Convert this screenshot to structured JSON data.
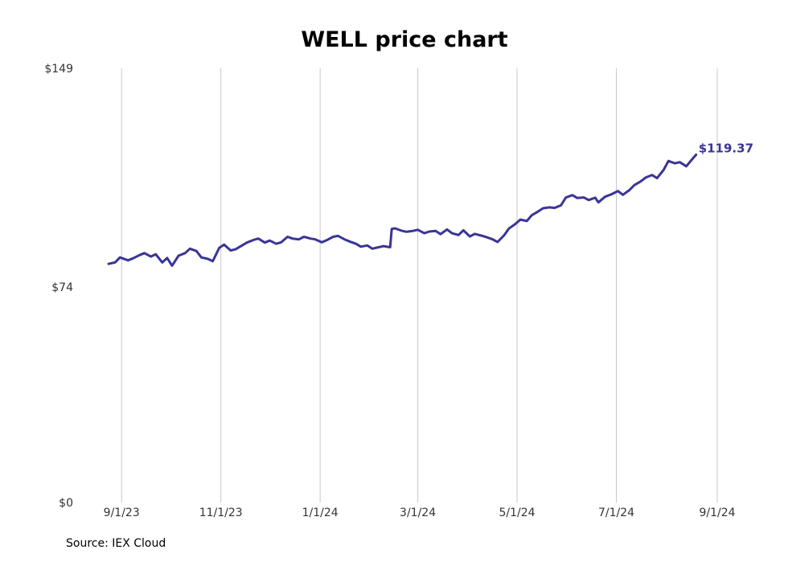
{
  "chart_data": {
    "type": "line",
    "title": "WELL price chart",
    "x_tick_labels": [
      "9/1/23",
      "11/1/23",
      "1/1/24",
      "3/1/24",
      "5/1/24",
      "7/1/24",
      "9/1/24"
    ],
    "x_tick_dates": [
      "2023-09-01",
      "2023-11-01",
      "2024-01-01",
      "2024-03-01",
      "2024-05-01",
      "2024-07-01",
      "2024-09-01"
    ],
    "y_tick_labels": [
      "$0",
      "$74",
      "$149"
    ],
    "y_tick_values": [
      0,
      74,
      149
    ],
    "ylim": [
      0,
      149
    ],
    "xlim": [
      "2023-08-23",
      "2024-09-01"
    ],
    "grid": "vertical",
    "line_color": "#3a3596",
    "end_label": "$119.37",
    "series": [
      {
        "points": [
          [
            "2023-08-24",
            81.9
          ],
          [
            "2023-08-28",
            82.4
          ],
          [
            "2023-08-31",
            84.1
          ],
          [
            "2023-09-05",
            83.1
          ],
          [
            "2023-09-08",
            83.8
          ],
          [
            "2023-09-12",
            84.9
          ],
          [
            "2023-09-15",
            85.6
          ],
          [
            "2023-09-19",
            84.4
          ],
          [
            "2023-09-22",
            85.2
          ],
          [
            "2023-09-26",
            82.4
          ],
          [
            "2023-09-29",
            83.9
          ],
          [
            "2023-10-02",
            81.3
          ],
          [
            "2023-10-06",
            84.7
          ],
          [
            "2023-10-10",
            85.6
          ],
          [
            "2023-10-13",
            87.1
          ],
          [
            "2023-10-17",
            86.3
          ],
          [
            "2023-10-20",
            84.1
          ],
          [
            "2023-10-24",
            83.6
          ],
          [
            "2023-10-27",
            82.8
          ],
          [
            "2023-10-31",
            87.4
          ],
          [
            "2023-11-03",
            88.5
          ],
          [
            "2023-11-07",
            86.5
          ],
          [
            "2023-11-10",
            86.9
          ],
          [
            "2023-11-14",
            88.2
          ],
          [
            "2023-11-17",
            89.2
          ],
          [
            "2023-11-21",
            90.1
          ],
          [
            "2023-11-24",
            90.6
          ],
          [
            "2023-11-28",
            89.2
          ],
          [
            "2023-12-01",
            89.9
          ],
          [
            "2023-12-05",
            88.8
          ],
          [
            "2023-12-08",
            89.3
          ],
          [
            "2023-12-12",
            91.2
          ],
          [
            "2023-12-15",
            90.6
          ],
          [
            "2023-12-19",
            90.3
          ],
          [
            "2023-12-22",
            91.2
          ],
          [
            "2023-12-26",
            90.6
          ],
          [
            "2023-12-29",
            90.3
          ],
          [
            "2024-01-02",
            89.3
          ],
          [
            "2024-01-05",
            90.0
          ],
          [
            "2024-01-09",
            91.2
          ],
          [
            "2024-01-12",
            91.5
          ],
          [
            "2024-01-16",
            90.3
          ],
          [
            "2024-01-19",
            89.6
          ],
          [
            "2024-01-23",
            88.8
          ],
          [
            "2024-01-26",
            87.8
          ],
          [
            "2024-01-30",
            88.2
          ],
          [
            "2024-02-02",
            87.1
          ],
          [
            "2024-02-06",
            87.6
          ],
          [
            "2024-02-09",
            88.0
          ],
          [
            "2024-02-13",
            87.6
          ],
          [
            "2024-02-14",
            93.9
          ],
          [
            "2024-02-16",
            94.1
          ],
          [
            "2024-02-20",
            93.3
          ],
          [
            "2024-02-23",
            92.9
          ],
          [
            "2024-02-27",
            93.2
          ],
          [
            "2024-03-01",
            93.6
          ],
          [
            "2024-03-05",
            92.4
          ],
          [
            "2024-03-08",
            93.0
          ],
          [
            "2024-03-12",
            93.2
          ],
          [
            "2024-03-15",
            92.1
          ],
          [
            "2024-03-19",
            93.7
          ],
          [
            "2024-03-22",
            92.4
          ],
          [
            "2024-03-26",
            91.8
          ],
          [
            "2024-03-29",
            93.4
          ],
          [
            "2024-04-02",
            91.3
          ],
          [
            "2024-04-05",
            92.2
          ],
          [
            "2024-04-09",
            91.6
          ],
          [
            "2024-04-12",
            91.1
          ],
          [
            "2024-04-16",
            90.3
          ],
          [
            "2024-04-19",
            89.4
          ],
          [
            "2024-04-23",
            91.7
          ],
          [
            "2024-04-26",
            94.0
          ],
          [
            "2024-04-30",
            95.6
          ],
          [
            "2024-05-03",
            97.1
          ],
          [
            "2024-05-07",
            96.6
          ],
          [
            "2024-05-10",
            98.6
          ],
          [
            "2024-05-14",
            99.9
          ],
          [
            "2024-05-17",
            101.0
          ],
          [
            "2024-05-21",
            101.3
          ],
          [
            "2024-05-24",
            101.1
          ],
          [
            "2024-05-28",
            102.0
          ],
          [
            "2024-05-31",
            104.7
          ],
          [
            "2024-06-04",
            105.5
          ],
          [
            "2024-06-07",
            104.5
          ],
          [
            "2024-06-11",
            104.7
          ],
          [
            "2024-06-14",
            103.8
          ],
          [
            "2024-06-18",
            104.6
          ],
          [
            "2024-06-20",
            103.0
          ],
          [
            "2024-06-24",
            104.9
          ],
          [
            "2024-06-28",
            105.8
          ],
          [
            "2024-07-02",
            106.9
          ],
          [
            "2024-07-05",
            105.6
          ],
          [
            "2024-07-09",
            107.2
          ],
          [
            "2024-07-12",
            108.9
          ],
          [
            "2024-07-16",
            110.2
          ],
          [
            "2024-07-19",
            111.5
          ],
          [
            "2024-07-23",
            112.4
          ],
          [
            "2024-07-26",
            111.3
          ],
          [
            "2024-07-30",
            114.1
          ],
          [
            "2024-08-02",
            117.2
          ],
          [
            "2024-08-06",
            116.4
          ],
          [
            "2024-08-09",
            116.8
          ],
          [
            "2024-08-13",
            115.4
          ],
          [
            "2024-08-16",
            117.4
          ],
          [
            "2024-08-19",
            119.37
          ]
        ]
      }
    ]
  },
  "footer": {
    "source": "Source: IEX Cloud"
  }
}
